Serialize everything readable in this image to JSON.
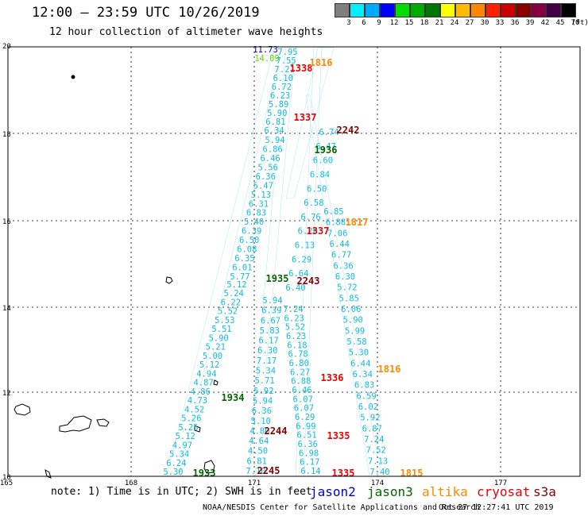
{
  "title": "12:00 – 23:59 UTC 10/26/2019",
  "subtitle": "12 hour collection of altimeter wave heights",
  "legend": {
    "unit_label": "(ft)",
    "colors": [
      "#7f7f7f",
      "#00f0ff",
      "#00aaff",
      "#0000ff",
      "#00dd00",
      "#00aa00",
      "#007700",
      "#ffff00",
      "#ffbb00",
      "#ff8800",
      "#ff2200",
      "#cc0000",
      "#880000",
      "#880044",
      "#440044",
      "#000000"
    ],
    "labels": [
      "3",
      "6",
      "9",
      "12",
      "15",
      "18",
      "21",
      "24",
      "27",
      "30",
      "33",
      "36",
      "39",
      "42",
      "45",
      "70"
    ]
  },
  "map": {
    "lon_ticks": [
      "165",
      "168",
      "171",
      "174",
      "177"
    ],
    "lat_ticks": [
      "20",
      "18",
      "16",
      "14",
      "12",
      "10"
    ],
    "text_colors": {
      "value": "#11bbdd",
      "jason2": "#0000cc",
      "jason3": "#006600",
      "altika": "#ff8800",
      "cryosat": "#ee0000",
      "s3a": "#880000"
    }
  },
  "readings": [
    {
      "v": "11.73",
      "c": "jason2"
    },
    {
      "v": "14.09",
      "c": "j3light"
    },
    {
      "v": "7.95",
      "c": "value"
    },
    {
      "v": "7.55",
      "c": "value"
    },
    {
      "v": "7.21",
      "c": "value"
    },
    {
      "v": "6.10",
      "c": "value"
    },
    {
      "v": "6.72",
      "c": "value"
    },
    {
      "v": "6.23",
      "c": "value"
    },
    {
      "v": "5.89",
      "c": "value"
    },
    {
      "v": "5.90",
      "c": "value"
    },
    {
      "v": "6.81",
      "c": "value"
    },
    {
      "v": "6.34",
      "c": "value"
    },
    {
      "v": "5.94",
      "c": "value"
    },
    {
      "v": "6.86",
      "c": "value"
    },
    {
      "v": "6.46",
      "c": "value"
    },
    {
      "v": "5.56",
      "c": "value"
    },
    {
      "v": "6.36",
      "c": "value"
    },
    {
      "v": "5.47",
      "c": "value"
    },
    {
      "v": "5.13",
      "c": "value"
    },
    {
      "v": "6.31",
      "c": "value"
    },
    {
      "v": "6.83",
      "c": "value"
    },
    {
      "v": "5.40",
      "c": "value"
    },
    {
      "v": "6.39",
      "c": "value"
    },
    {
      "v": "6.50",
      "c": "value"
    },
    {
      "v": "6.08",
      "c": "value"
    },
    {
      "v": "6.35",
      "c": "value"
    },
    {
      "v": "6.01",
      "c": "value"
    },
    {
      "v": "5.77",
      "c": "value"
    },
    {
      "v": "5.12",
      "c": "value"
    },
    {
      "v": "5.24",
      "c": "value"
    },
    {
      "v": "6.22",
      "c": "value"
    },
    {
      "v": "5.52",
      "c": "value"
    },
    {
      "v": "5.53",
      "c": "value"
    },
    {
      "v": "5.51",
      "c": "value"
    },
    {
      "v": "5.90",
      "c": "value"
    },
    {
      "v": "5.21",
      "c": "value"
    },
    {
      "v": "5.00",
      "c": "value"
    },
    {
      "v": "5.12",
      "c": "value"
    },
    {
      "v": "4.94",
      "c": "value"
    },
    {
      "v": "4.87",
      "c": "value"
    },
    {
      "v": "4.86",
      "c": "value"
    },
    {
      "v": "4.73",
      "c": "value"
    },
    {
      "v": "4.52",
      "c": "value"
    },
    {
      "v": "5.26",
      "c": "value"
    },
    {
      "v": "5.25",
      "c": "value"
    },
    {
      "v": "5.12",
      "c": "value"
    },
    {
      "v": "4.97",
      "c": "value"
    },
    {
      "v": "5.34",
      "c": "value"
    },
    {
      "v": "6.24",
      "c": "value"
    },
    {
      "v": "5.30",
      "c": "value"
    },
    {
      "v": "5.94",
      "c": "value"
    },
    {
      "v": "6.39",
      "c": "value"
    },
    {
      "v": "6.67",
      "c": "value"
    },
    {
      "v": "5.83",
      "c": "value"
    },
    {
      "v": "6.17",
      "c": "value"
    },
    {
      "v": "6.30",
      "c": "value"
    },
    {
      "v": "7.17",
      "c": "value"
    },
    {
      "v": "5.34",
      "c": "value"
    },
    {
      "v": "5.71",
      "c": "value"
    },
    {
      "v": "5.92",
      "c": "value"
    },
    {
      "v": "5.94",
      "c": "value"
    },
    {
      "v": "6.36",
      "c": "value"
    },
    {
      "v": "5.10",
      "c": "value"
    },
    {
      "v": "4.80",
      "c": "value"
    },
    {
      "v": "4.64",
      "c": "value"
    },
    {
      "v": "4.50",
      "c": "value"
    },
    {
      "v": "6.81",
      "c": "value"
    },
    {
      "v": "7.10",
      "c": "value"
    },
    {
      "v": "7.24",
      "c": "value"
    },
    {
      "v": "6.23",
      "c": "value"
    },
    {
      "v": "5.52",
      "c": "value"
    },
    {
      "v": "6.23",
      "c": "value"
    },
    {
      "v": "6.18",
      "c": "value"
    },
    {
      "v": "6.78",
      "c": "value"
    },
    {
      "v": "6.80",
      "c": "value"
    },
    {
      "v": "6.27",
      "c": "value"
    },
    {
      "v": "6.88",
      "c": "value"
    },
    {
      "v": "6.46",
      "c": "value"
    },
    {
      "v": "6.07",
      "c": "value"
    },
    {
      "v": "6.07",
      "c": "value"
    },
    {
      "v": "6.29",
      "c": "value"
    },
    {
      "v": "6.99",
      "c": "value"
    },
    {
      "v": "6.51",
      "c": "value"
    },
    {
      "v": "6.36",
      "c": "value"
    },
    {
      "v": "6.98",
      "c": "value"
    },
    {
      "v": "6.17",
      "c": "value"
    },
    {
      "v": "6.14",
      "c": "value"
    },
    {
      "v": "6.40",
      "c": "value"
    },
    {
      "v": "6.64",
      "c": "value"
    },
    {
      "v": "6.29",
      "c": "value"
    },
    {
      "v": "6.13",
      "c": "value"
    },
    {
      "v": "6.20",
      "c": "value"
    },
    {
      "v": "6.76",
      "c": "value"
    },
    {
      "v": "6.58",
      "c": "value"
    },
    {
      "v": "6.50",
      "c": "value"
    },
    {
      "v": "6.84",
      "c": "value"
    },
    {
      "v": "6.60",
      "c": "value"
    },
    {
      "v": "6.47",
      "c": "value"
    },
    {
      "v": "6.74",
      "c": "value"
    },
    {
      "v": "6.85",
      "c": "value"
    },
    {
      "v": "6.88",
      "c": "value"
    },
    {
      "v": "7.06",
      "c": "value"
    },
    {
      "v": "6.44",
      "c": "value"
    },
    {
      "v": "6.77",
      "c": "value"
    },
    {
      "v": "6.36",
      "c": "value"
    },
    {
      "v": "6.30",
      "c": "value"
    },
    {
      "v": "5.72",
      "c": "value"
    },
    {
      "v": "5.85",
      "c": "value"
    },
    {
      "v": "6.06",
      "c": "value"
    },
    {
      "v": "5.90",
      "c": "value"
    },
    {
      "v": "5.99",
      "c": "value"
    },
    {
      "v": "5.58",
      "c": "value"
    },
    {
      "v": "5.30",
      "c": "value"
    },
    {
      "v": "6.44",
      "c": "value"
    },
    {
      "v": "6.34",
      "c": "value"
    },
    {
      "v": "6.83",
      "c": "value"
    },
    {
      "v": "6.59",
      "c": "value"
    },
    {
      "v": "6.02",
      "c": "value"
    },
    {
      "v": "5.92",
      "c": "value"
    },
    {
      "v": "6.87",
      "c": "value"
    },
    {
      "v": "7.24",
      "c": "value"
    },
    {
      "v": "7.52",
      "c": "value"
    },
    {
      "v": "7.13",
      "c": "value"
    },
    {
      "v": "7.40",
      "c": "value"
    }
  ],
  "pass_times": [
    {
      "t": "1338",
      "c": "cryosat"
    },
    {
      "t": "1816",
      "c": "altika"
    },
    {
      "t": "1337",
      "c": "cryosat"
    },
    {
      "t": "2242",
      "c": "s3a"
    },
    {
      "t": "1936",
      "c": "jason3"
    },
    {
      "t": "1817",
      "c": "altika"
    },
    {
      "t": "1337",
      "c": "cryosat"
    },
    {
      "t": "1935",
      "c": "jason3"
    },
    {
      "t": "2243",
      "c": "s3a"
    },
    {
      "t": "1816",
      "c": "altika"
    },
    {
      "t": "1336",
      "c": "cryosat"
    },
    {
      "t": "1934",
      "c": "jason3"
    },
    {
      "t": "2244",
      "c": "s3a"
    },
    {
      "t": "1335",
      "c": "cryosat"
    },
    {
      "t": "1933",
      "c": "jason3"
    },
    {
      "t": "2245",
      "c": "s3a"
    },
    {
      "t": "1335",
      "c": "cryosat"
    },
    {
      "t": "1815",
      "c": "altika"
    }
  ],
  "note": "note: 1) Time is in UTC; 2) SWH is in feet",
  "satellites": [
    {
      "name": "jason2",
      "color": "#0000cc"
    },
    {
      "name": "jason3",
      "color": "#006600"
    },
    {
      "name": "altika",
      "color": "#ff8800"
    },
    {
      "name": "cryosat",
      "color": "#ee0000"
    },
    {
      "name": "s3a",
      "color": "#880000"
    }
  ],
  "credit": "NOAA/NESDIS Center for Satellite Applications and Research",
  "timestamp": "Oct 27 12:27:41 UTC 2019"
}
